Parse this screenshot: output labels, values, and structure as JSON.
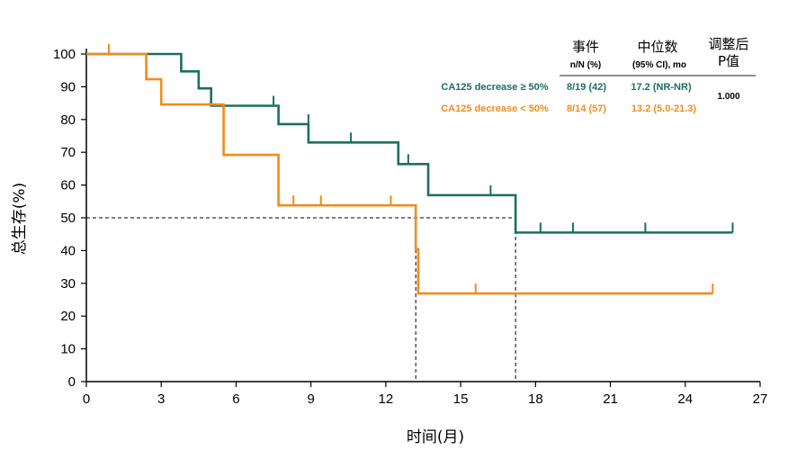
{
  "chart_data": {
    "type": "line",
    "subtype": "kaplan-meier",
    "xlabel": "时间(月)",
    "ylabel": "总生存(%)",
    "xlim": [
      0,
      27
    ],
    "ylim": [
      0,
      100
    ],
    "xticks": [
      0,
      3,
      6,
      9,
      12,
      15,
      18,
      21,
      24,
      27
    ],
    "yticks": [
      0,
      10,
      20,
      30,
      40,
      50,
      60,
      70,
      80,
      90,
      100
    ],
    "grid": false,
    "median_reference_line": {
      "y": 50,
      "x_drops": [
        13.2,
        17.2
      ]
    },
    "series": [
      {
        "name": "CA125 decrease ≥ 50%",
        "color": "#1a7060",
        "steps": [
          [
            0,
            100
          ],
          [
            3.8,
            94.7
          ],
          [
            4.5,
            89.5
          ],
          [
            5.0,
            84.2
          ],
          [
            7.7,
            78.6
          ],
          [
            8.9,
            73.0
          ],
          [
            12.5,
            66.4
          ],
          [
            13.7,
            56.9
          ],
          [
            17.2,
            45.5
          ]
        ],
        "end": 25.9,
        "censored": [
          [
            7.5,
            84.2
          ],
          [
            8.9,
            78.6
          ],
          [
            10.6,
            73.0
          ],
          [
            12.9,
            66.4
          ],
          [
            16.2,
            56.9
          ],
          [
            18.2,
            45.5
          ],
          [
            19.5,
            45.5
          ],
          [
            22.4,
            45.5
          ],
          [
            25.9,
            45.5
          ]
        ],
        "events_text": "8/19 (42)",
        "median_text": "17.2 (NR-NR)"
      },
      {
        "name": "CA125 decrease < 50%",
        "color": "#f08c1e",
        "steps": [
          [
            0,
            100
          ],
          [
            2.4,
            92.3
          ],
          [
            3.0,
            84.6
          ],
          [
            5.5,
            69.2
          ],
          [
            7.7,
            53.8
          ],
          [
            13.2,
            40.4
          ],
          [
            13.3,
            26.9
          ]
        ],
        "end": 25.1,
        "censored": [
          [
            0.9,
            100
          ],
          [
            8.3,
            53.8
          ],
          [
            9.4,
            53.8
          ],
          [
            12.2,
            53.8
          ],
          [
            15.6,
            26.9
          ],
          [
            25.1,
            26.9
          ]
        ],
        "events_text": "8/14 (57)",
        "median_text": "13.2 (5.0-21.3)"
      }
    ],
    "table": {
      "col_events_title": "事件",
      "col_events_sub": "n/N (%)",
      "col_median_title": "中位数",
      "col_median_sub": "(95% CI), mo",
      "col_p_title_1": "调整后",
      "col_p_title_2": "P值",
      "p_value": "1.000"
    }
  }
}
